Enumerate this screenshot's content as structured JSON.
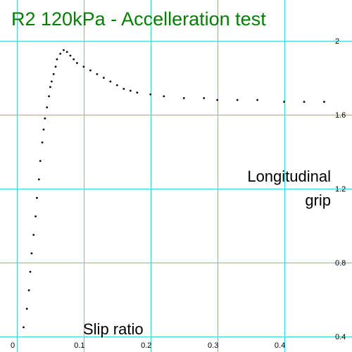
{
  "chart_data": {
    "type": "scatter",
    "title": "R2 120kPa - Accelleration test",
    "xlabel": "Slip ratio",
    "ylabel_line1": "Longitudinal",
    "ylabel_line2": "grip",
    "xlim": [
      0,
      0.47
    ],
    "ylim": [
      0.4,
      2.0
    ],
    "x_ticks": [
      0,
      0.1,
      0.2,
      0.3,
      0.4
    ],
    "x_tick_labels": [
      "0",
      "0.1",
      "0.2",
      "0.3",
      "0.4"
    ],
    "y_ticks": [
      0.4,
      0.8,
      1.2,
      1.6,
      2.0
    ],
    "y_tick_labels": [
      "0.4",
      "0.8",
      "1.2",
      "1.6",
      "2"
    ],
    "grid": true,
    "grid_color": "#36d6d6",
    "title_color": "#008000",
    "point_color": "#000000",
    "series": [
      {
        "values": [
          [
            0.01,
            0.45
          ],
          [
            0.015,
            0.55
          ],
          [
            0.018,
            0.65
          ],
          [
            0.02,
            0.75
          ],
          [
            0.022,
            0.85
          ],
          [
            0.025,
            0.95
          ],
          [
            0.028,
            1.05
          ],
          [
            0.03,
            1.15
          ],
          [
            0.033,
            1.25
          ],
          [
            0.035,
            1.35
          ],
          [
            0.038,
            1.45
          ],
          [
            0.04,
            1.52
          ],
          [
            0.042,
            1.58
          ],
          [
            0.045,
            1.64
          ],
          [
            0.048,
            1.7
          ],
          [
            0.05,
            1.75
          ],
          [
            0.052,
            1.78
          ],
          [
            0.055,
            1.82
          ],
          [
            0.058,
            1.86
          ],
          [
            0.06,
            1.9
          ],
          [
            0.065,
            1.93
          ],
          [
            0.07,
            1.95
          ],
          [
            0.075,
            1.94
          ],
          [
            0.08,
            1.92
          ],
          [
            0.085,
            1.9
          ],
          [
            0.09,
            1.88
          ],
          [
            0.1,
            1.86
          ],
          [
            0.11,
            1.84
          ],
          [
            0.12,
            1.82
          ],
          [
            0.13,
            1.8
          ],
          [
            0.14,
            1.78
          ],
          [
            0.15,
            1.76
          ],
          [
            0.16,
            1.74
          ],
          [
            0.17,
            1.73
          ],
          [
            0.18,
            1.72
          ],
          [
            0.2,
            1.71
          ],
          [
            0.22,
            1.7
          ],
          [
            0.25,
            1.69
          ],
          [
            0.28,
            1.69
          ],
          [
            0.3,
            1.68
          ],
          [
            0.33,
            1.68
          ],
          [
            0.36,
            1.68
          ],
          [
            0.4,
            1.67
          ],
          [
            0.43,
            1.67
          ],
          [
            0.46,
            1.67
          ]
        ]
      }
    ]
  }
}
